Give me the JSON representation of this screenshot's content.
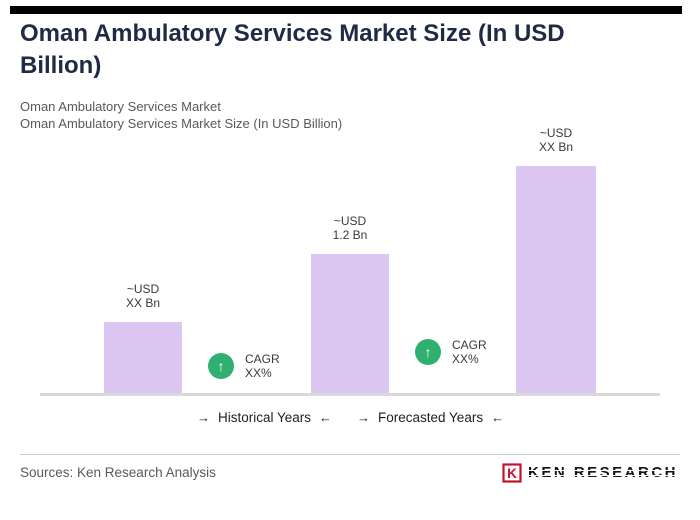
{
  "header": {
    "title": "Oman Ambulatory Services Market Size (In USD Billion)",
    "subtitle1": "Oman Ambulatory Services Market",
    "subtitle2": "Oman Ambulatory Services Market Size (In USD Billion)"
  },
  "chart_data": {
    "type": "bar",
    "title": "Oman Ambulatory Services Market Size (In USD Billion)",
    "categories": [
      "~USD XX Bn",
      "~USD 1.2 Bn",
      "~USD XX Bn"
    ],
    "values": [
      0.62,
      1.2,
      1.95
    ],
    "unit": "USD Bn",
    "bar_labels": [
      {
        "line1": "~USD",
        "line2": "XX Bn"
      },
      {
        "line1": "~USD",
        "line2": "1.2 Bn"
      },
      {
        "line1": "~USD",
        "line2": "XX Bn"
      }
    ],
    "axis_groups": [
      "Historical Years",
      "Forecasted Years"
    ],
    "ylim": [
      0,
      2.2
    ],
    "grid": false,
    "legend": false
  },
  "cagr_badges": [
    {
      "line1": "CAGR",
      "line2": "XX%"
    },
    {
      "line1": "CAGR",
      "line2": "XX%"
    }
  ],
  "icons": {
    "up_arrow": "↑"
  },
  "axis": {
    "historical_label": "Historical Years",
    "forecasted_label": "Forecasted Years",
    "arrow_right": "→",
    "arrow_left": "←"
  },
  "footer": {
    "source": "Sources: Ken Research Analysis",
    "logo_text": "KEN RESEARCH",
    "logo_letter": "K"
  },
  "colors": {
    "title": "#1f2a44",
    "bar": "#dcc7f2",
    "cagr_green": "#2fb070",
    "logo_red": "#c8102e"
  }
}
